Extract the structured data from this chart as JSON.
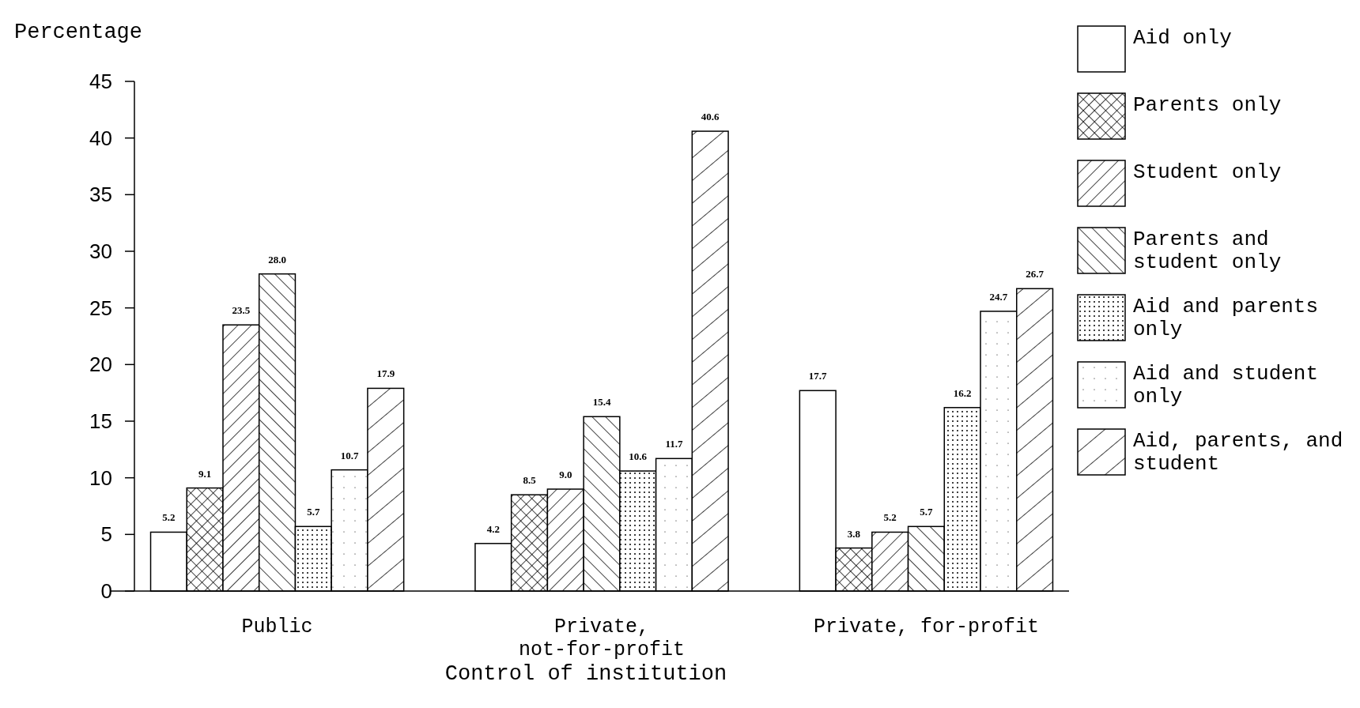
{
  "chart_data": {
    "type": "bar",
    "xlabel": "Control of institution",
    "ylabel": "Percentage",
    "categories": [
      "Public",
      "Private, not-for-profit",
      "Private, for-profit"
    ],
    "series": [
      {
        "name": "Aid only",
        "color": "#ffffff",
        "values": [
          5.2,
          4.2,
          17.7
        ],
        "value_labels": [
          "5.2",
          "4.2",
          "17.7"
        ]
      },
      {
        "name": "Parents only",
        "color": "#ffffff",
        "values": [
          9.1,
          8.5,
          3.8
        ],
        "value_labels": [
          "9.1",
          "8.5",
          "3.8"
        ]
      },
      {
        "name": "Student only",
        "color": "#ffffff",
        "values": [
          23.5,
          9.0,
          5.2
        ],
        "value_labels": [
          "23.5",
          "9.0",
          "5.2"
        ]
      },
      {
        "name": "Parents and student only",
        "color": "#ffffff",
        "values": [
          28.0,
          15.4,
          5.7
        ],
        "value_labels": [
          "28.0",
          "15.4",
          "5.7"
        ]
      },
      {
        "name": "Aid and parents only",
        "color": "#ffffff",
        "values": [
          5.7,
          10.6,
          16.2
        ],
        "value_labels": [
          "5.7",
          "10.6",
          "16.2"
        ]
      },
      {
        "name": "Aid and student only",
        "color": "#ffffff",
        "values": [
          10.7,
          11.7,
          24.7
        ],
        "value_labels": [
          "10.7",
          "11.7",
          "24.7"
        ]
      },
      {
        "name": "Aid, parents, and student",
        "color": "#ffffff",
        "values": [
          17.9,
          40.6,
          26.7
        ],
        "value_labels": [
          "17.9",
          "40.6",
          "26.7"
        ]
      }
    ],
    "ylim": [
      0,
      45
    ],
    "yticks": [
      0,
      5,
      10,
      15,
      20,
      25,
      30,
      35,
      40,
      45
    ],
    "legend": "right"
  }
}
